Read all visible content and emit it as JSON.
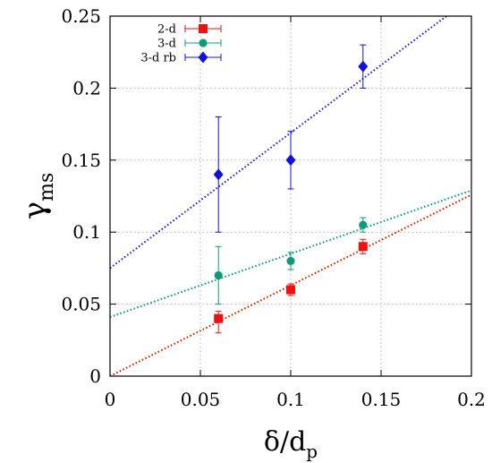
{
  "chart_data": {
    "type": "scatter",
    "xlabel": {
      "base": "δ/d",
      "sub": "p"
    },
    "ylabel": {
      "base": "γ",
      "sub": "ms"
    },
    "xlim": [
      0,
      0.2
    ],
    "ylim": [
      0,
      0.25
    ],
    "x_ticks": [
      "0",
      "0.05",
      "0.1",
      "0.15",
      "0.2"
    ],
    "y_ticks": [
      "0",
      "0.05",
      "0.1",
      "0.15",
      "0.2",
      "0.25"
    ],
    "grid": true,
    "legend_position": "top-left",
    "series": [
      {
        "name": "2-d",
        "color": "#ee1111",
        "marker": "square",
        "points": [
          {
            "x": 0.06,
            "y": 0.04,
            "err_low": 0.03,
            "err_high": 0.045
          },
          {
            "x": 0.1,
            "y": 0.06,
            "err_low": 0.056,
            "err_high": 0.064
          },
          {
            "x": 0.14,
            "y": 0.09,
            "err_low": 0.085,
            "err_high": 0.095
          }
        ],
        "fit": {
          "intercept": 0.0,
          "slope": 0.63,
          "color": "#cc2200"
        }
      },
      {
        "name": "3-d",
        "color": "#11997a",
        "marker": "circle",
        "points": [
          {
            "x": 0.06,
            "y": 0.07,
            "err_low": 0.05,
            "err_high": 0.09
          },
          {
            "x": 0.1,
            "y": 0.08,
            "err_low": 0.074,
            "err_high": 0.086
          },
          {
            "x": 0.14,
            "y": 0.105,
            "err_low": 0.1,
            "err_high": 0.11
          }
        ],
        "fit": {
          "intercept": 0.041,
          "slope": 0.44,
          "color": "#119966"
        }
      },
      {
        "name": "3-d rb",
        "color": "#1111dd",
        "marker": "diamond",
        "points": [
          {
            "x": 0.06,
            "y": 0.14,
            "err_low": 0.1,
            "err_high": 0.18
          },
          {
            "x": 0.1,
            "y": 0.15,
            "err_low": 0.13,
            "err_high": 0.17
          },
          {
            "x": 0.14,
            "y": 0.215,
            "err_low": 0.2,
            "err_high": 0.23
          }
        ],
        "fit": {
          "intercept": 0.075,
          "slope": 0.94,
          "color": "#2222cc"
        }
      }
    ]
  }
}
